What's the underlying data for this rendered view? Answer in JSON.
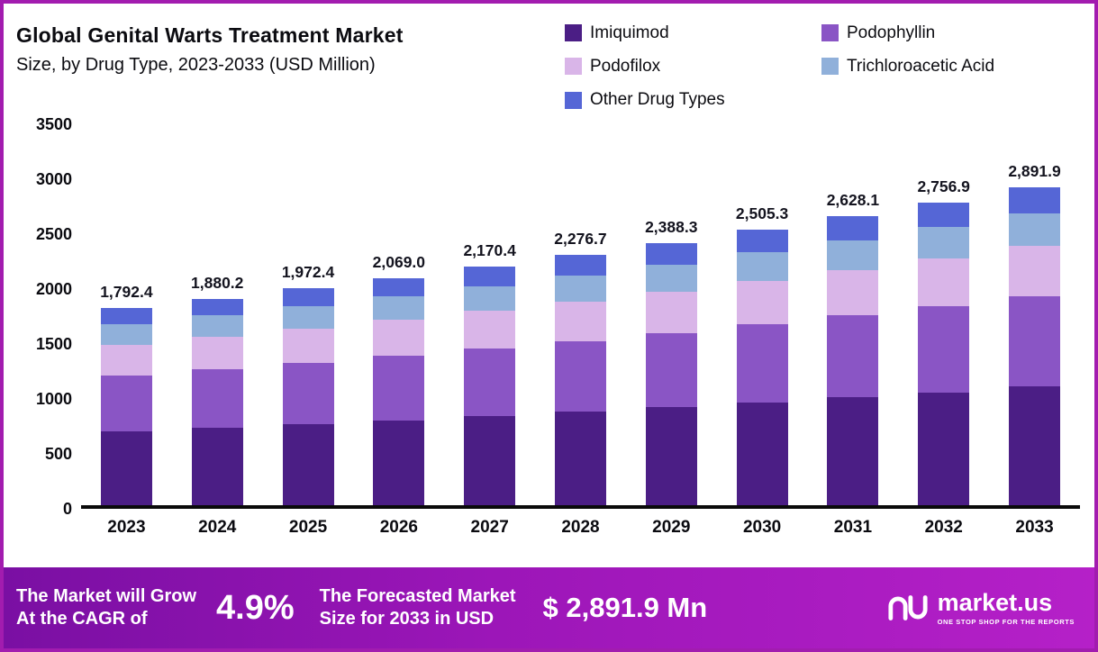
{
  "header": {
    "title": "Global Genital Warts Treatment Market",
    "subtitle": "Size, by Drug Type, 2023-2033 (USD Million)"
  },
  "legend": {
    "items": [
      {
        "label": "Imiquimod",
        "color": "#4b1e85"
      },
      {
        "label": "Podophyllin",
        "color": "#8a55c5"
      },
      {
        "label": "Podofilox",
        "color": "#d9b5e8"
      },
      {
        "label": "Trichloroacetic Acid",
        "color": "#90b0da"
      },
      {
        "label": "Other Drug Types",
        "color": "#5566d6"
      }
    ]
  },
  "chart_data": {
    "type": "bar",
    "stacked": true,
    "title": "Global Genital Warts Treatment Market Size, by Drug Type, 2023-2033 (USD Million)",
    "xlabel": "",
    "ylabel": "USD Million",
    "ylim": [
      0,
      3500
    ],
    "yticks": [
      0,
      500,
      1000,
      1500,
      2000,
      2500,
      3000,
      3500
    ],
    "grid": false,
    "legend_position": "top-right",
    "categories": [
      "2023",
      "2024",
      "2025",
      "2026",
      "2027",
      "2028",
      "2029",
      "2030",
      "2031",
      "2032",
      "2033"
    ],
    "totals": [
      1792.4,
      1880.2,
      1972.4,
      2069.0,
      2170.4,
      2276.7,
      2388.3,
      2505.3,
      2628.1,
      2756.9,
      2891.9
    ],
    "total_labels": [
      "1,792.4",
      "1,880.2",
      "1,972.4",
      "2,069.0",
      "2,170.4",
      "2,276.7",
      "2,388.3",
      "2,505.3",
      "2,628.1",
      "2,756.9",
      "2,891.9"
    ],
    "series": [
      {
        "name": "Imiquimod",
        "color": "#4b1e85",
        "values": [
          668.6,
          701.3,
          735.7,
          771.7,
          809.6,
          849.2,
          890.8,
          934.5,
          980.3,
          1028.3,
          1078.7
        ]
      },
      {
        "name": "Podophyllin",
        "color": "#8a55c5",
        "values": [
          509.0,
          534.0,
          560.2,
          587.6,
          616.4,
          646.6,
          678.3,
          711.5,
          746.4,
          783.0,
          821.3
        ]
      },
      {
        "name": "Podofilox",
        "color": "#d9b5e8",
        "values": [
          283.2,
          297.1,
          311.6,
          326.9,
          342.9,
          359.7,
          377.4,
          395.8,
          415.2,
          435.6,
          456.9
        ]
      },
      {
        "name": "Trichloroacetic Acid",
        "color": "#90b0da",
        "values": [
          184.6,
          193.7,
          203.2,
          213.1,
          223.6,
          234.5,
          246.0,
          258.0,
          270.7,
          284.0,
          297.9
        ]
      },
      {
        "name": "Other Drug Types",
        "color": "#5566d6",
        "values": [
          147.0,
          154.1,
          161.7,
          169.7,
          177.9,
          186.7,
          195.8,
          205.5,
          215.5,
          226.0,
          237.1
        ]
      }
    ]
  },
  "banner": {
    "left_line1": "The Market will Grow",
    "left_line2": "At the CAGR of",
    "cagr": "4.9%",
    "mid_line1": "The Forecasted Market",
    "mid_line2": "Size for 2033 in USD",
    "amount": "$ 2,891.9 Mn",
    "brand": "market.us",
    "tagline": "ONE STOP SHOP FOR THE REPORTS"
  },
  "colors": {
    "frame_border": "#a21caf",
    "axis": "#0a0a0a",
    "banner_gradient_start": "#7a0fa3",
    "banner_gradient_end": "#b520c8"
  }
}
